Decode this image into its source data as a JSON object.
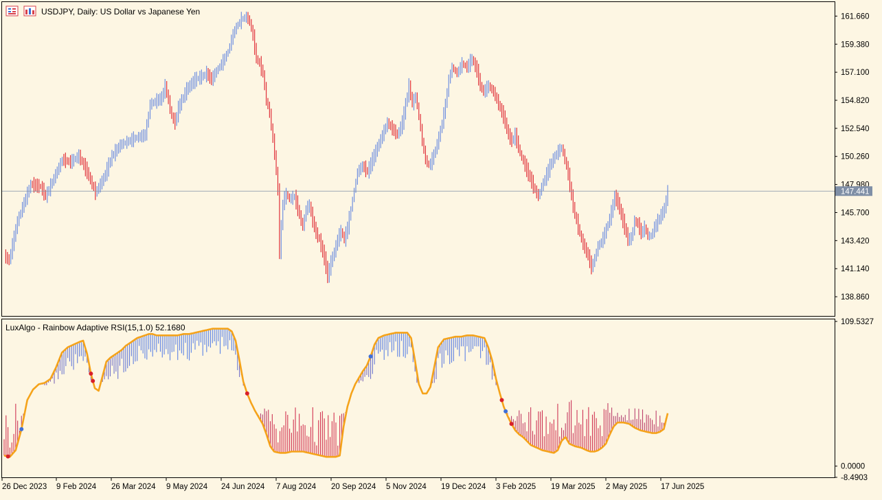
{
  "header": {
    "symbol_title": "USDJPY, Daily:  US Dollar vs Japanese Yen",
    "indicator_title": "LuxAlgo - Rainbow Adaptive RSI(15,1.0) 52.1680"
  },
  "icons": [
    "bars-list-icon",
    "chart-window-icon"
  ],
  "colors": {
    "background": "#fdf6e3",
    "bull": "#6f8fe0",
    "bear": "#e0313a",
    "rsi_line": "#f5a31a",
    "price_line": "#7f8fa6",
    "price_tag": "#7f8fa6",
    "axis_text": "#000000"
  },
  "chart_data": [
    {
      "type": "ohlc-bars",
      "symbol": "USDJPY",
      "timeframe": "Daily",
      "title": "USDJPY, Daily:  US Dollar vs Japanese Yen",
      "current_price": 147.441,
      "current_price_label": "147.441",
      "ylim": [
        137.3,
        162.8
      ],
      "y_ticks": [
        "161.660",
        "159.380",
        "157.100",
        "154.820",
        "152.540",
        "150.260",
        "147.980",
        "145.700",
        "143.420",
        "141.140",
        "138.860"
      ],
      "x_ticks": [
        "26 Dec 2023",
        "9 Feb 2024",
        "26 Mar 2024",
        "9 May 2024",
        "24 Jun 2024",
        "7 Aug 2024",
        "20 Sep 2024",
        "5 Nov 2024",
        "19 Dec 2024",
        "3 Feb 2025",
        "19 Mar 2025",
        "2 May 2025",
        "17 Jun 2025"
      ],
      "anchors": [
        [
          0,
          142.2
        ],
        [
          3,
          141.8
        ],
        [
          8,
          145.0
        ],
        [
          12,
          146.5
        ],
        [
          16,
          148.0
        ],
        [
          22,
          147.8
        ],
        [
          25,
          147.0
        ],
        [
          30,
          148.5
        ],
        [
          35,
          150.0
        ],
        [
          40,
          149.8
        ],
        [
          45,
          150.3
        ],
        [
          50,
          149.0
        ],
        [
          55,
          147.3
        ],
        [
          60,
          148.5
        ],
        [
          65,
          150.3
        ],
        [
          70,
          151.2
        ],
        [
          75,
          151.5
        ],
        [
          80,
          151.8
        ],
        [
          85,
          152.0
        ],
        [
          88,
          154.5
        ],
        [
          92,
          154.8
        ],
        [
          95,
          155.0
        ],
        [
          97,
          156.0
        ],
        [
          99,
          154.8
        ],
        [
          101,
          153.5
        ],
        [
          103,
          153.0
        ],
        [
          105,
          154.2
        ],
        [
          110,
          155.7
        ],
        [
          115,
          156.5
        ],
        [
          120,
          156.8
        ],
        [
          122,
          157.0
        ],
        [
          125,
          156.5
        ],
        [
          128,
          157.2
        ],
        [
          132,
          158.0
        ],
        [
          135,
          158.8
        ],
        [
          138,
          160.2
        ],
        [
          140,
          160.8
        ],
        [
          143,
          161.4
        ],
        [
          146,
          161.6
        ],
        [
          148,
          161.2
        ],
        [
          150,
          160.0
        ],
        [
          152,
          158.2
        ],
        [
          154,
          157.8
        ],
        [
          156,
          157.0
        ],
        [
          158,
          154.8
        ],
        [
          160,
          153.8
        ],
        [
          163,
          150.5
        ],
        [
          165,
          147.5
        ],
        [
          166,
          142.5
        ],
        [
          168,
          146.5
        ],
        [
          170,
          147.2
        ],
        [
          172,
          146.8
        ],
        [
          175,
          147.0
        ],
        [
          178,
          145.5
        ],
        [
          180,
          144.5
        ],
        [
          182,
          146.0
        ],
        [
          184,
          146.3
        ],
        [
          186,
          145.0
        ],
        [
          188,
          144.0
        ],
        [
          190,
          143.5
        ],
        [
          193,
          142.0
        ],
        [
          195,
          140.5
        ],
        [
          197,
          141.7
        ],
        [
          199,
          142.5
        ],
        [
          201,
          143.5
        ],
        [
          203,
          144.2
        ],
        [
          205,
          143.5
        ],
        [
          207,
          144.5
        ],
        [
          209,
          146.0
        ],
        [
          211,
          147.5
        ],
        [
          213,
          149.0
        ],
        [
          216,
          149.5
        ],
        [
          219,
          149.0
        ],
        [
          222,
          150.0
        ],
        [
          225,
          151.0
        ],
        [
          228,
          152.0
        ],
        [
          231,
          153.0
        ],
        [
          234,
          152.5
        ],
        [
          237,
          152.0
        ],
        [
          240,
          153.0
        ],
        [
          242,
          154.5
        ],
        [
          244,
          156.0
        ],
        [
          246,
          154.5
        ],
        [
          248,
          155.2
        ],
        [
          250,
          153.5
        ],
        [
          252,
          151.5
        ],
        [
          254,
          150.0
        ],
        [
          256,
          149.5
        ],
        [
          258,
          150.0
        ],
        [
          260,
          150.8
        ],
        [
          262,
          151.8
        ],
        [
          264,
          153.0
        ],
        [
          266,
          154.5
        ],
        [
          268,
          156.5
        ],
        [
          270,
          157.5
        ],
        [
          273,
          157.0
        ],
        [
          276,
          157.8
        ],
        [
          279,
          157.5
        ],
        [
          282,
          158.2
        ],
        [
          285,
          157.2
        ],
        [
          287,
          156.0
        ],
        [
          289,
          155.5
        ],
        [
          292,
          156.0
        ],
        [
          295,
          155.5
        ],
        [
          298,
          154.5
        ],
        [
          301,
          153.5
        ],
        [
          304,
          152.0
        ],
        [
          306,
          151.5
        ],
        [
          308,
          152.0
        ],
        [
          311,
          150.5
        ],
        [
          314,
          149.5
        ],
        [
          317,
          148.5
        ],
        [
          320,
          147.5
        ],
        [
          322,
          147.0
        ],
        [
          324,
          147.8
        ],
        [
          327,
          148.8
        ],
        [
          330,
          149.8
        ],
        [
          333,
          150.5
        ],
        [
          336,
          151.0
        ],
        [
          338,
          150.0
        ],
        [
          340,
          148.8
        ],
        [
          342,
          147.0
        ],
        [
          344,
          145.5
        ],
        [
          346,
          144.5
        ],
        [
          348,
          143.5
        ],
        [
          350,
          142.8
        ],
        [
          352,
          142.2
        ],
        [
          354,
          141.2
        ],
        [
          356,
          142.0
        ],
        [
          358,
          143.0
        ],
        [
          360,
          143.3
        ],
        [
          362,
          144.0
        ],
        [
          364,
          144.8
        ],
        [
          366,
          145.7
        ],
        [
          368,
          147.0
        ],
        [
          370,
          146.5
        ],
        [
          372,
          145.5
        ],
        [
          374,
          144.5
        ],
        [
          376,
          143.5
        ],
        [
          378,
          143.6
        ],
        [
          380,
          145.0
        ],
        [
          382,
          144.8
        ],
        [
          384,
          144.0
        ],
        [
          386,
          144.5
        ],
        [
          388,
          143.8
        ],
        [
          390,
          143.8
        ],
        [
          392,
          144.5
        ],
        [
          394,
          145.0
        ],
        [
          396,
          145.5
        ],
        [
          398,
          146.0
        ],
        [
          400,
          147.441
        ]
      ]
    },
    {
      "type": "rsi-histogram",
      "title": "LuxAlgo - Rainbow Adaptive RSI(15,1.0) 52.1680",
      "current_value": 52.168,
      "ylim": [
        -8.4903,
        109.5327
      ],
      "y_ticks": [
        "109.5327",
        "0.0000",
        "-8.4903"
      ],
      "rsi_anchors": [
        [
          0,
          8
        ],
        [
          3,
          7
        ],
        [
          6,
          12
        ],
        [
          9,
          28
        ],
        [
          12,
          50
        ],
        [
          15,
          58
        ],
        [
          18,
          62
        ],
        [
          21,
          63
        ],
        [
          24,
          66
        ],
        [
          27,
          75
        ],
        [
          30,
          86
        ],
        [
          33,
          90
        ],
        [
          36,
          92
        ],
        [
          39,
          94
        ],
        [
          41,
          95
        ],
        [
          43,
          85
        ],
        [
          45,
          70
        ],
        [
          47,
          59
        ],
        [
          49,
          57
        ],
        [
          51,
          68
        ],
        [
          53,
          79
        ],
        [
          55,
          82
        ],
        [
          57,
          84
        ],
        [
          59,
          86
        ],
        [
          61,
          88
        ],
        [
          63,
          91
        ],
        [
          65,
          93
        ],
        [
          67,
          95
        ],
        [
          69,
          97
        ],
        [
          71,
          98
        ],
        [
          73,
          99
        ],
        [
          75,
          100
        ],
        [
          77,
          100
        ],
        [
          79,
          99
        ],
        [
          81,
          99
        ],
        [
          84,
          99
        ],
        [
          87,
          99
        ],
        [
          90,
          99
        ],
        [
          93,
          100
        ],
        [
          96,
          100
        ],
        [
          99,
          101
        ],
        [
          102,
          102
        ],
        [
          105,
          103
        ],
        [
          108,
          104
        ],
        [
          111,
          104
        ],
        [
          114,
          104
        ],
        [
          116,
          104
        ],
        [
          118,
          102
        ],
        [
          120,
          95
        ],
        [
          122,
          80
        ],
        [
          124,
          64
        ],
        [
          126,
          55
        ],
        [
          128,
          48
        ],
        [
          130,
          42
        ],
        [
          132,
          37
        ],
        [
          134,
          32
        ],
        [
          136,
          24
        ],
        [
          138,
          15
        ],
        [
          140,
          11
        ],
        [
          143,
          10
        ],
        [
          146,
          10
        ],
        [
          149,
          11
        ],
        [
          152,
          11
        ],
        [
          155,
          11
        ],
        [
          158,
          10
        ],
        [
          161,
          9
        ],
        [
          164,
          8
        ],
        [
          167,
          7
        ],
        [
          170,
          7
        ],
        [
          172,
          7
        ],
        [
          174,
          8
        ],
        [
          176,
          30
        ],
        [
          178,
          45
        ],
        [
          180,
          55
        ],
        [
          182,
          62
        ],
        [
          184,
          67
        ],
        [
          186,
          72
        ],
        [
          188,
          76
        ],
        [
          190,
          83
        ],
        [
          192,
          92
        ],
        [
          194,
          97
        ],
        [
          197,
          99
        ],
        [
          200,
          100
        ],
        [
          203,
          101
        ],
        [
          206,
          101
        ],
        [
          209,
          101
        ],
        [
          211,
          97
        ],
        [
          213,
          80
        ],
        [
          215,
          62
        ],
        [
          217,
          55
        ],
        [
          219,
          55
        ],
        [
          221,
          60
        ],
        [
          223,
          75
        ],
        [
          225,
          90
        ],
        [
          228,
          96
        ],
        [
          231,
          97
        ],
        [
          234,
          98
        ],
        [
          237,
          98
        ],
        [
          240,
          99
        ],
        [
          243,
          99
        ],
        [
          246,
          98
        ],
        [
          249,
          97
        ],
        [
          251,
          90
        ],
        [
          253,
          80
        ],
        [
          255,
          66
        ],
        [
          257,
          55
        ],
        [
          259,
          45
        ],
        [
          261,
          38
        ],
        [
          263,
          32
        ],
        [
          265,
          27
        ],
        [
          267,
          24
        ],
        [
          269,
          22
        ],
        [
          271,
          19
        ],
        [
          273,
          16
        ],
        [
          276,
          14
        ],
        [
          279,
          12
        ],
        [
          282,
          11
        ],
        [
          285,
          10
        ],
        [
          287,
          12
        ],
        [
          289,
          19
        ],
        [
          291,
          22
        ],
        [
          293,
          17
        ],
        [
          296,
          15
        ],
        [
          299,
          14
        ],
        [
          302,
          12
        ],
        [
          304,
          11
        ],
        [
          306,
          11
        ],
        [
          308,
          12
        ],
        [
          310,
          14
        ],
        [
          312,
          17
        ],
        [
          314,
          24
        ],
        [
          316,
          30
        ],
        [
          318,
          33
        ],
        [
          321,
          33
        ],
        [
          324,
          32
        ],
        [
          327,
          29
        ],
        [
          330,
          27
        ],
        [
          333,
          26
        ],
        [
          336,
          25
        ],
        [
          338,
          25
        ],
        [
          340,
          26
        ],
        [
          342,
          28
        ],
        [
          344,
          40
        ]
      ],
      "signals": [
        {
          "i": 2,
          "kind": "bear"
        },
        {
          "i": 9,
          "kind": "bull"
        },
        {
          "i": 45,
          "kind": "bear"
        },
        {
          "i": 46,
          "kind": "bear"
        },
        {
          "i": 126,
          "kind": "bear"
        },
        {
          "i": 190,
          "kind": "bull"
        },
        {
          "i": 258,
          "kind": "bear"
        },
        {
          "i": 260,
          "kind": "bull"
        },
        {
          "i": 263,
          "kind": "bear"
        }
      ]
    }
  ]
}
